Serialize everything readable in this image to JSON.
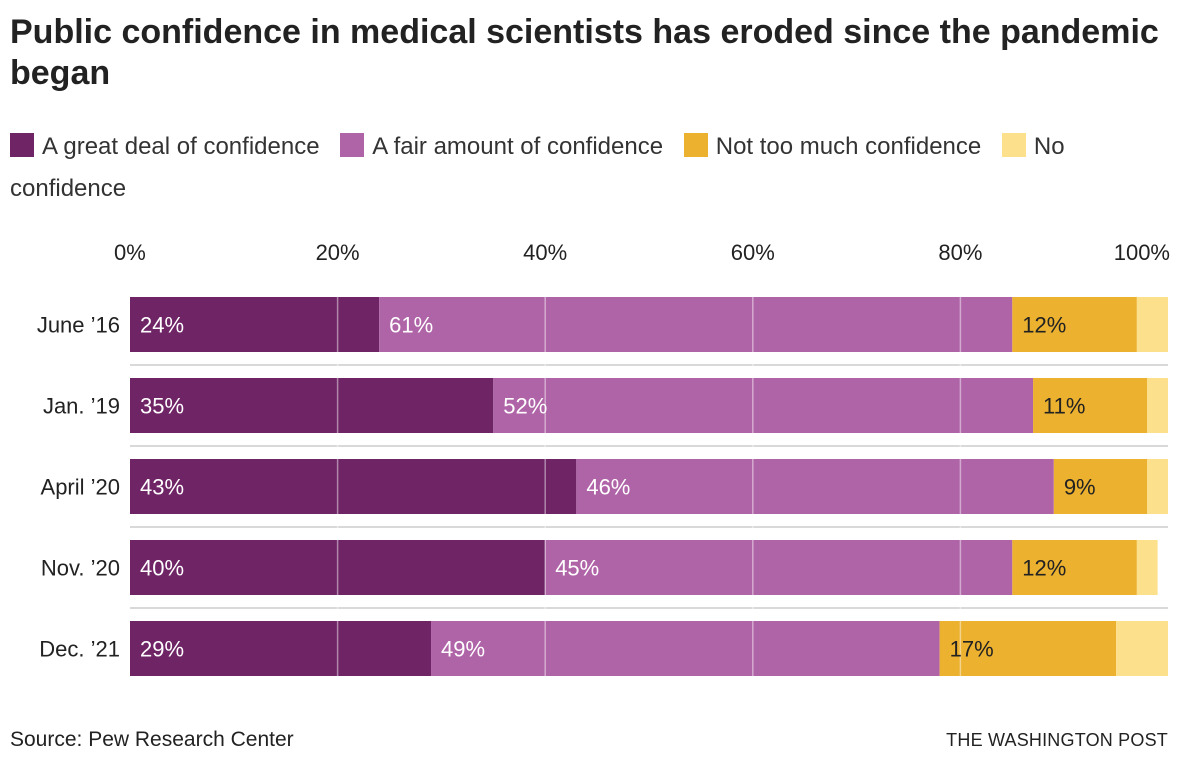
{
  "title": "Public confidence in medical scientists has eroded since the pandemic began",
  "legend": [
    {
      "label": "A great deal of confidence",
      "color": "#6f2466"
    },
    {
      "label": "A fair amount of confidence",
      "color": "#b064a8"
    },
    {
      "label": "Not too much confidence",
      "color": "#ebb12f"
    },
    {
      "label": "No confidence",
      "color": "#fde08b"
    }
  ],
  "chart_data": {
    "type": "bar",
    "orientation": "horizontal",
    "stacked": true,
    "categories": [
      "June ’16",
      "Jan. ’19",
      "April ’20",
      "Nov. ’20",
      "Dec. ’21"
    ],
    "series": [
      {
        "name": "A great deal of confidence",
        "values": [
          24,
          35,
          43,
          40,
          29
        ],
        "labels": [
          "24%",
          "35%",
          "43%",
          "40%",
          "29%"
        ]
      },
      {
        "name": "A fair amount of confidence",
        "values": [
          61,
          52,
          46,
          45,
          49
        ],
        "labels": [
          "61%",
          "52%",
          "46%",
          "45%",
          "49%"
        ]
      },
      {
        "name": "Not too much confidence",
        "values": [
          12,
          11,
          9,
          12,
          17
        ],
        "labels": [
          "12%",
          "11%",
          "9%",
          "12%",
          "17%"
        ]
      },
      {
        "name": "No confidence",
        "values": [
          3,
          2,
          2,
          2,
          5
        ],
        "labels": [
          "",
          "",
          "",
          "",
          ""
        ]
      }
    ],
    "x_ticks": [
      0,
      20,
      40,
      60,
      80,
      100
    ],
    "x_tick_labels": [
      "0%",
      "20%",
      "40%",
      "60%",
      "80%",
      "100%"
    ],
    "xlim": [
      0,
      100
    ],
    "grid": true,
    "label_colors": [
      "#ffffff",
      "#ffffff",
      "#222222",
      "#222222"
    ]
  },
  "footer": {
    "source": "Source: Pew Research Center",
    "brand": "THE WASHINGTON POST"
  }
}
